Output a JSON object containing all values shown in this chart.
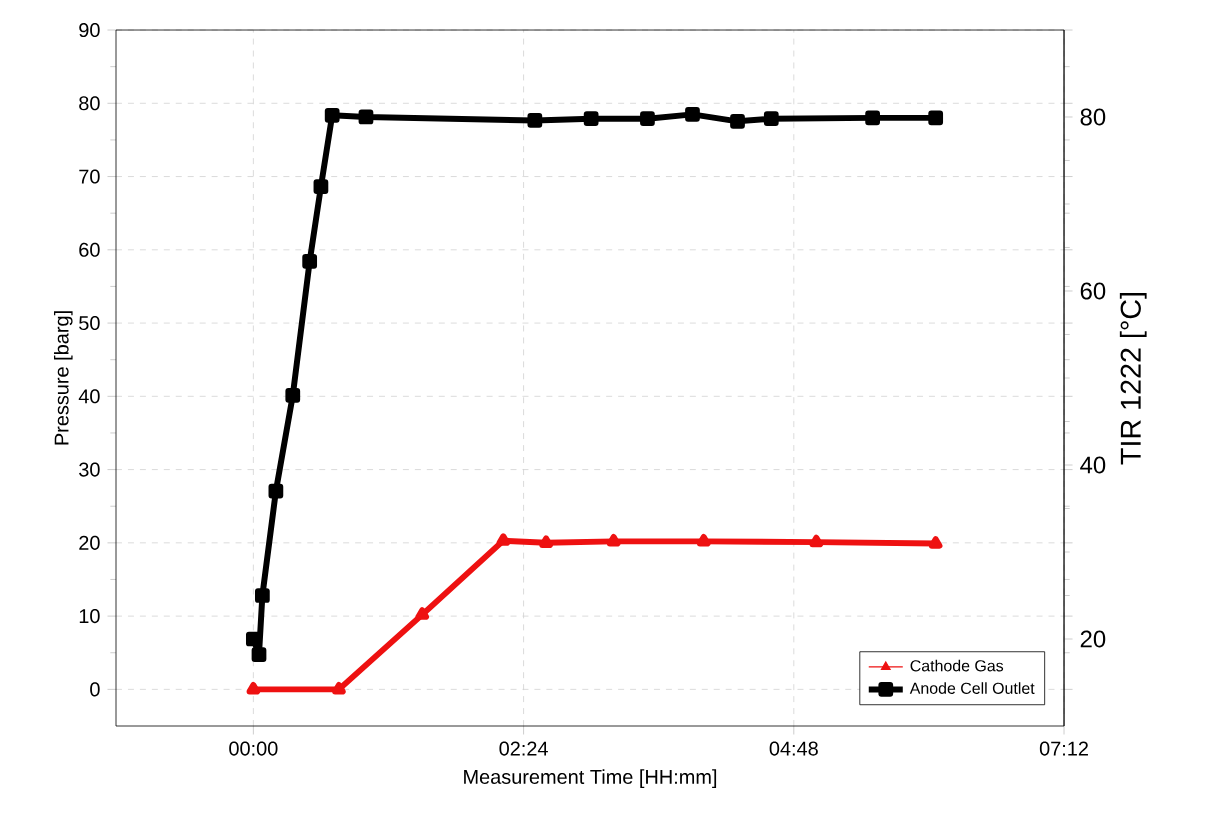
{
  "chart_data": {
    "type": "line",
    "xlabel": "Measurement Time [HH:mm]",
    "ylabel": "Pressure [barg]",
    "y2label": "TIR 1222 [°C]",
    "xlim": [
      -1.22,
      7.2
    ],
    "xticks": [
      {
        "value": 0,
        "label": "00:00"
      },
      {
        "value": 2.4,
        "label": "02:24"
      },
      {
        "value": 4.8,
        "label": "04:48"
      },
      {
        "value": 7.2,
        "label": "07:12"
      }
    ],
    "ylim": [
      -5,
      90
    ],
    "yticks": [
      0,
      10,
      20,
      30,
      40,
      50,
      60,
      70,
      80,
      90
    ],
    "y2lim": [
      10,
      90
    ],
    "y2ticks": [
      20,
      40,
      60,
      80
    ],
    "grid": true,
    "legend": "bottom right",
    "series": [
      {
        "name": "Cathode Gas",
        "color": "#ee1111",
        "marker": "triangle",
        "axis": "y",
        "x": [
          0,
          0.76,
          1.5,
          2.22,
          2.6,
          3.2,
          4.0,
          5.0,
          6.06
        ],
        "values": [
          0,
          0,
          10.2,
          20.3,
          20.0,
          20.2,
          20.2,
          20.1,
          19.9
        ]
      },
      {
        "name": "Anode Cell Outlet",
        "color": "#000000",
        "marker": "square",
        "axis": "y2",
        "x": [
          0,
          0.05,
          0.08,
          0.2,
          0.35,
          0.5,
          0.6,
          0.7,
          1.0,
          2.5,
          3.0,
          3.5,
          3.9,
          4.3,
          4.6,
          5.5,
          6.06
        ],
        "values": [
          20.0,
          18.2,
          25,
          37,
          48,
          63.4,
          72,
          80.2,
          80.0,
          79.6,
          79.8,
          79.8,
          80.3,
          79.5,
          79.8,
          79.9,
          79.9
        ]
      }
    ]
  }
}
